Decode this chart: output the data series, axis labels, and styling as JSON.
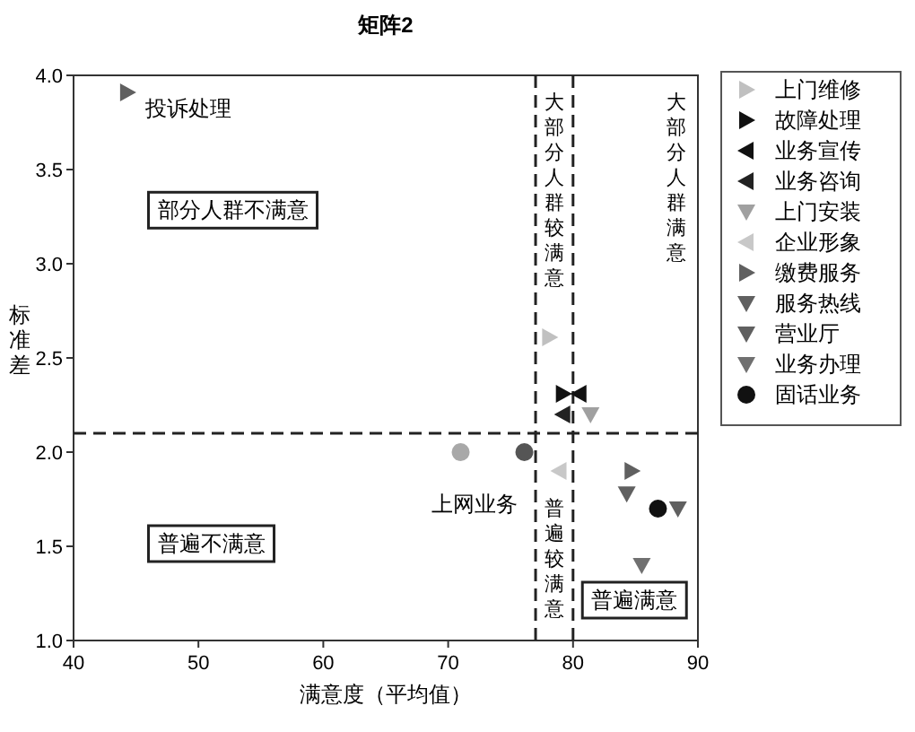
{
  "chart_data": {
    "type": "scatter",
    "title": "矩阵2",
    "xlabel": "满意度（平均值）",
    "ylabel": "标准差",
    "xlim": [
      40,
      90
    ],
    "xticks": [
      40,
      50,
      60,
      70,
      80,
      90
    ],
    "ylim": [
      1,
      4
    ],
    "yticks": [
      {
        "value": 1,
        "label": "1.0"
      },
      {
        "value": 1.5,
        "label": "1.5"
      },
      {
        "value": 2,
        "label": "2.0"
      },
      {
        "value": 2.5,
        "label": "2.5"
      },
      {
        "value": 3,
        "label": "3.0"
      },
      {
        "value": 3.5,
        "label": "3.5"
      },
      {
        "value": 4,
        "label": "4.0"
      }
    ],
    "grid": false,
    "legend": "right",
    "series": [
      {
        "name": "上门维修",
        "color": "#c0c0c0",
        "marker": "triangle-right",
        "x": [
          78.1
        ],
        "values": [
          2.61
        ]
      },
      {
        "name": "故障处理",
        "color": "#111111",
        "marker": "triangle-right",
        "x": [
          79.2
        ],
        "values": [
          2.31
        ]
      },
      {
        "name": "业务宣传",
        "color": "#111111",
        "marker": "triangle-left",
        "x": [
          80.5
        ],
        "values": [
          2.31
        ]
      },
      {
        "name": "业务咨询",
        "color": "#222222",
        "marker": "triangle-left",
        "x": [
          79.2
        ],
        "values": [
          2.2
        ]
      },
      {
        "name": "上门安装",
        "color": "#a0a0a0",
        "marker": "triangle-down",
        "x": [
          81.4
        ],
        "values": [
          2.2
        ]
      },
      {
        "name": "企业形象",
        "color": "#c8c8c8",
        "marker": "triangle-left",
        "x": [
          78.9
        ],
        "values": [
          1.9
        ]
      },
      {
        "name": "缴费服务",
        "color": "#606060",
        "marker": "triangle-right",
        "x": [
          84.7
        ],
        "values": [
          1.9
        ]
      },
      {
        "name": "服务热线",
        "color": "#606060",
        "marker": "triangle-down",
        "x": [
          84.3
        ],
        "values": [
          1.78
        ]
      },
      {
        "name": "营业厅",
        "color": "#606060",
        "marker": "triangle-down",
        "x": [
          88.4
        ],
        "values": [
          1.7
        ]
      },
      {
        "name": "业务办理",
        "color": "#707070",
        "marker": "triangle-down",
        "x": [
          85.5
        ],
        "values": [
          1.4
        ]
      },
      {
        "name": "固话业务",
        "color": "#111111",
        "marker": "circle",
        "x": [
          86.8
        ],
        "values": [
          1.7
        ]
      },
      {
        "color": "#606060",
        "marker": "triangle-right",
        "x": [
          44.3
        ],
        "values": [
          3.91
        ]
      },
      {
        "colors": [
          "#a8a8a8",
          "#555555"
        ],
        "marker": "circle",
        "x": [
          71.0,
          76.1
        ],
        "values": [
          2.0,
          2.0
        ]
      }
    ],
    "ref_lines": [
      {
        "axis": "y",
        "value": 2.1,
        "line_style": "dashed"
      },
      {
        "axis": "x",
        "value": 77,
        "line_style": "dashed"
      },
      {
        "axis": "x",
        "value": 80,
        "line_style": "dashed"
      }
    ],
    "annotations": [
      "部分人群不满意",
      "普遍不满意",
      "普遍满意",
      "大部分人群较满意",
      "大部分人群满意",
      "普遍较满意",
      {
        "text": "投诉处理",
        "x": 44.3,
        "y": 3.91
      },
      {
        "text": "上网业务",
        "x": 76.1,
        "y": 2.0
      }
    ]
  }
}
